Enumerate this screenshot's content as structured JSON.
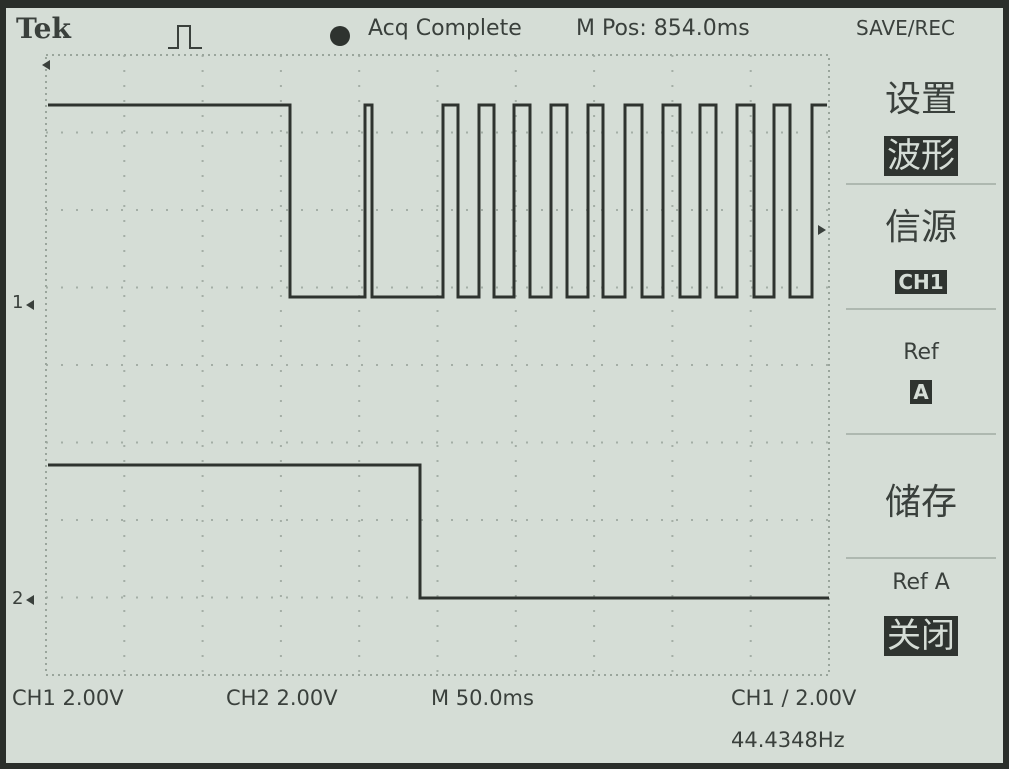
{
  "header": {
    "brand": "Tek",
    "status": "Acq Complete",
    "position": "M Pos: 854.0ms",
    "menu_title": "SAVE/REC"
  },
  "menu": [
    {
      "label": "设置",
      "option": "波形"
    },
    {
      "label": "信源",
      "option": "CH1"
    },
    {
      "label": "Ref",
      "option": "A"
    },
    {
      "label": "储存"
    },
    {
      "label": "Ref A",
      "option": "关闭"
    }
  ],
  "channels": [
    "1",
    "2"
  ],
  "footer": {
    "ch1_scale": "CH1 2.00V",
    "ch2_scale": "CH2 2.00V",
    "timebase": "M 50.0ms",
    "trigger": "CH1 / 2.00V",
    "frequency": "44.4348Hz"
  }
}
